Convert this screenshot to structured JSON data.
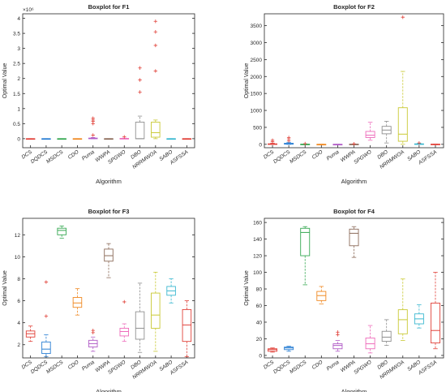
{
  "figure": {
    "colors": [
      "#e1423a",
      "#2a7fd4",
      "#36a852",
      "#f08a24",
      "#b15cc7",
      "#8c6b5a",
      "#ee6bbb",
      "#8f8f8f",
      "#c9c934",
      "#3bb8d0"
    ]
  },
  "chart_data": [
    {
      "type": "boxplot",
      "title": "Boxplot for F1",
      "xlabel": "Algorithm",
      "ylabel": "Optimal Value",
      "exponent_label": "×10⁶",
      "categories": [
        "DCS",
        "DQDCS",
        "MSDCS",
        "CDO",
        "Puma",
        "WWPA",
        "SPGWO",
        "DBO",
        "NRRMWOA",
        "SABO",
        "ASFSSA"
      ],
      "ylim": [
        -0.3,
        4.15
      ],
      "yticks": [
        0,
        0.5,
        1,
        1.5,
        2,
        2.5,
        3,
        3.5,
        4
      ],
      "ytick_labels": [
        "0",
        "0.5",
        "1",
        "1.5",
        "2",
        "2.5",
        "3",
        "3.5",
        "4"
      ],
      "boxes": [
        {
          "q1": 0,
          "median": 0,
          "q3": 0,
          "whisker_low": 0,
          "whisker_high": 0,
          "outliers": []
        },
        {
          "q1": 0,
          "median": 0,
          "q3": 0,
          "whisker_low": 0,
          "whisker_high": 0,
          "outliers": []
        },
        {
          "q1": 0,
          "median": 0,
          "q3": 0,
          "whisker_low": 0,
          "whisker_high": 0,
          "outliers": []
        },
        {
          "q1": 0,
          "median": 0,
          "q3": 0,
          "whisker_low": 0,
          "whisker_high": 0,
          "outliers": []
        },
        {
          "q1": 0,
          "median": 0.01,
          "q3": 0.02,
          "whisker_low": 0,
          "whisker_high": 0.04,
          "outliers": [
            0.12,
            0.5,
            0.58,
            0.62,
            0.68
          ]
        },
        {
          "q1": 0,
          "median": 0,
          "q3": 0,
          "whisker_low": 0,
          "whisker_high": 0,
          "outliers": []
        },
        {
          "q1": 0,
          "median": 0,
          "q3": 0.01,
          "whisker_low": 0,
          "whisker_high": 0.02,
          "outliers": [
            0.06
          ]
        },
        {
          "q1": 0,
          "median": 0,
          "q3": 0.55,
          "whisker_low": 0,
          "whisker_high": 0.75,
          "outliers": [
            1.55,
            1.95,
            2.35
          ]
        },
        {
          "q1": 0.05,
          "median": 0.2,
          "q3": 0.55,
          "whisker_low": 0,
          "whisker_high": 0.62,
          "outliers": [
            2.25,
            3.1,
            3.55,
            3.9
          ]
        },
        {
          "q1": 0,
          "median": 0,
          "q3": 0,
          "whisker_low": 0,
          "whisker_high": 0,
          "outliers": []
        },
        {
          "q1": 0,
          "median": 0,
          "q3": 0,
          "whisker_low": 0,
          "whisker_high": 0,
          "outliers": []
        }
      ]
    },
    {
      "type": "boxplot",
      "title": "Boxplot for F2",
      "xlabel": "Algorithm",
      "ylabel": "Optimal Value",
      "exponent_label": "",
      "categories": [
        "DCS",
        "DQDCS",
        "MSDCS",
        "CDO",
        "Puma",
        "WWPA",
        "SPGWO",
        "DBO",
        "NRRMWOA",
        "SABO",
        "ASFSSA"
      ],
      "ylim": [
        -100,
        3850
      ],
      "yticks": [
        0,
        500,
        1000,
        1500,
        2000,
        2500,
        3000,
        3500
      ],
      "ytick_labels": [
        "0",
        "500",
        "1000",
        "1500",
        "2000",
        "2500",
        "3000",
        "3500"
      ],
      "boxes": [
        {
          "q1": 0,
          "median": 5,
          "q3": 15,
          "whisker_low": 0,
          "whisker_high": 35,
          "outliers": [
            80,
            120
          ]
        },
        {
          "q1": 5,
          "median": 15,
          "q3": 30,
          "whisker_low": 0,
          "whisker_high": 60,
          "outliers": [
            100,
            160,
            200
          ]
        },
        {
          "q1": 0,
          "median": 0,
          "q3": 5,
          "whisker_low": 0,
          "whisker_high": 10,
          "outliers": [
            20
          ]
        },
        {
          "q1": 0,
          "median": 0,
          "q3": 0,
          "whisker_low": 0,
          "whisker_high": 0,
          "outliers": []
        },
        {
          "q1": 0,
          "median": 0,
          "q3": 0,
          "whisker_low": 0,
          "whisker_high": 0,
          "outliers": []
        },
        {
          "q1": 0,
          "median": 0,
          "q3": 5,
          "whisker_low": 0,
          "whisker_high": 10,
          "outliers": [
            15
          ]
        },
        {
          "q1": 200,
          "median": 270,
          "q3": 380,
          "whisker_low": 120,
          "whisker_high": 650,
          "outliers": []
        },
        {
          "q1": 310,
          "median": 420,
          "q3": 530,
          "whisker_low": 40,
          "whisker_high": 680,
          "outliers": []
        },
        {
          "q1": 90,
          "median": 300,
          "q3": 1080,
          "whisker_low": 0,
          "whisker_high": 2150,
          "outliers": [
            3750
          ]
        },
        {
          "q1": 0,
          "median": 5,
          "q3": 15,
          "whisker_low": 0,
          "whisker_high": 25,
          "outliers": [
            40
          ]
        },
        {
          "q1": 0,
          "median": 0,
          "q3": 5,
          "whisker_low": 0,
          "whisker_high": 8,
          "outliers": []
        }
      ]
    },
    {
      "type": "boxplot",
      "title": "Boxplot for F3",
      "xlabel": "Algorithm",
      "ylabel": "Optimal Value",
      "exponent_label": "",
      "categories": [
        "DCS",
        "DQDCS",
        "MSDCS",
        "CDO",
        "Puma",
        "WWPA",
        "SPGWO",
        "DBO",
        "NRRMWOA",
        "SABO",
        "ASFSSA"
      ],
      "ylim": [
        0.8,
        13.5
      ],
      "yticks": [
        2,
        4,
        6,
        8,
        10,
        12
      ],
      "ytick_labels": [
        "2",
        "4",
        "6",
        "8",
        "10",
        "12"
      ],
      "boxes": [
        {
          "q1": 2.7,
          "median": 3.0,
          "q3": 3.25,
          "whisker_low": 2.3,
          "whisker_high": 3.7,
          "outliers": []
        },
        {
          "q1": 1.2,
          "median": 1.6,
          "q3": 2.25,
          "whisker_low": 0.9,
          "whisker_high": 2.9,
          "outliers": [
            4.6,
            7.7
          ]
        },
        {
          "q1": 12.0,
          "median": 12.4,
          "q3": 12.6,
          "whisker_low": 11.7,
          "whisker_high": 12.8,
          "outliers": []
        },
        {
          "q1": 5.4,
          "median": 5.8,
          "q3": 6.3,
          "whisker_low": 4.7,
          "whisker_high": 7.1,
          "outliers": []
        },
        {
          "q1": 1.8,
          "median": 2.1,
          "q3": 2.4,
          "whisker_low": 1.4,
          "whisker_high": 2.7,
          "outliers": [
            3.1,
            3.3
          ]
        },
        {
          "q1": 9.6,
          "median": 10.1,
          "q3": 10.7,
          "whisker_low": 8.1,
          "whisker_high": 11.2,
          "outliers": []
        },
        {
          "q1": 2.8,
          "median": 3.2,
          "q3": 3.5,
          "whisker_low": 2.3,
          "whisker_high": 3.9,
          "outliers": [
            5.9
          ]
        },
        {
          "q1": 2.5,
          "median": 3.5,
          "q3": 5.0,
          "whisker_low": 1.3,
          "whisker_high": 7.6,
          "outliers": []
        },
        {
          "q1": 3.5,
          "median": 4.7,
          "q3": 6.7,
          "whisker_low": 1.4,
          "whisker_high": 8.6,
          "outliers": []
        },
        {
          "q1": 6.5,
          "median": 6.9,
          "q3": 7.3,
          "whisker_low": 5.8,
          "whisker_high": 8.0,
          "outliers": []
        },
        {
          "q1": 2.3,
          "median": 3.8,
          "q3": 5.2,
          "whisker_low": 0.9,
          "whisker_high": 6.0,
          "outliers": []
        }
      ]
    },
    {
      "type": "boxplot",
      "title": "Boxplot for F4",
      "xlabel": "Algorithm",
      "ylabel": "Optimal Value",
      "exponent_label": "",
      "categories": [
        "DCS",
        "DQDCS",
        "MSDCS",
        "CDO",
        "Puma",
        "WWPA",
        "SPGWO",
        "DBO",
        "NRRMWOA",
        "SABO",
        "ASFSSA"
      ],
      "ylim": [
        -3,
        165
      ],
      "yticks": [
        0,
        20,
        40,
        60,
        80,
        100,
        120,
        140,
        160
      ],
      "ytick_labels": [
        "0",
        "20",
        "40",
        "60",
        "80",
        "100",
        "120",
        "140",
        "160"
      ],
      "boxes": [
        {
          "q1": 5,
          "median": 7,
          "q3": 8,
          "whisker_low": 4,
          "whisker_high": 9,
          "outliers": []
        },
        {
          "q1": 7,
          "median": 9,
          "q3": 10,
          "whisker_low": 5,
          "whisker_high": 11,
          "outliers": []
        },
        {
          "q1": 120,
          "median": 148,
          "q3": 153,
          "whisker_low": 85,
          "whisker_high": 155,
          "outliers": []
        },
        {
          "q1": 66,
          "median": 72,
          "q3": 77,
          "whisker_low": 62,
          "whisker_high": 83,
          "outliers": []
        },
        {
          "q1": 8,
          "median": 12,
          "q3": 14,
          "whisker_low": 5,
          "whisker_high": 18,
          "outliers": [
            25,
            28
          ]
        },
        {
          "q1": 132,
          "median": 147,
          "q3": 152,
          "whisker_low": 118,
          "whisker_high": 155,
          "outliers": []
        },
        {
          "q1": 8,
          "median": 14,
          "q3": 21,
          "whisker_low": 3,
          "whisker_high": 36,
          "outliers": []
        },
        {
          "q1": 17,
          "median": 22,
          "q3": 29,
          "whisker_low": 12,
          "whisker_high": 43,
          "outliers": []
        },
        {
          "q1": 26,
          "median": 43,
          "q3": 55,
          "whisker_low": 18,
          "whisker_high": 92,
          "outliers": []
        },
        {
          "q1": 38,
          "median": 44,
          "q3": 50,
          "whisker_low": 33,
          "whisker_high": 61,
          "outliers": []
        },
        {
          "q1": 15,
          "median": 30,
          "q3": 63,
          "whisker_low": 8,
          "whisker_high": 100,
          "outliers": []
        }
      ]
    }
  ]
}
